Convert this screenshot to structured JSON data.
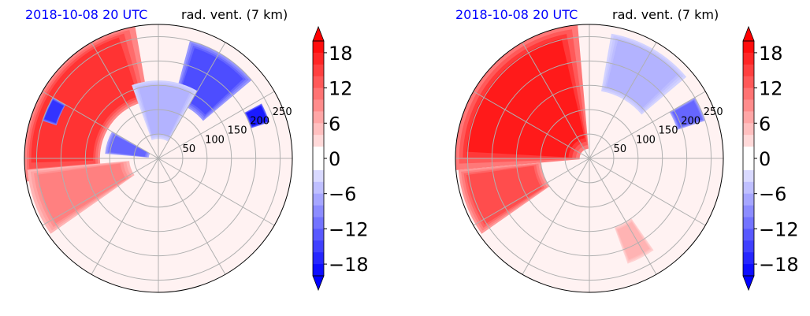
{
  "chart_data": [
    {
      "type": "heatmap",
      "subtype": "polar",
      "title_left": "2018-10-08 20 UTC",
      "title_right": "rad. vent. (7 km)",
      "radial_ticks": [
        "50",
        "100",
        "150",
        "200",
        "250"
      ],
      "radial_values": [
        50,
        100,
        150,
        200,
        250
      ],
      "r_max": 275,
      "grid": true,
      "angular_spokes_deg": [
        0,
        30,
        60,
        90,
        120,
        150,
        180,
        210,
        240,
        270,
        300,
        330
      ],
      "colorbar": {
        "ticks": [
          "18",
          "12",
          "6",
          "0",
          "−6",
          "−12",
          "−18"
        ],
        "tick_values": [
          18,
          12,
          6,
          0,
          -6,
          -12,
          -18
        ],
        "vmin": -20,
        "vmax": 20,
        "step": 2,
        "colors": {
          "positive": "#ff0000",
          "zero": "#ffffff",
          "negative": "#0000ff"
        }
      },
      "regions": [
        {
          "sign": "positive",
          "level": 16,
          "a0": 100,
          "a1": 190,
          "r0": 120,
          "r1": 275
        },
        {
          "sign": "positive",
          "level": 10,
          "a0": 185,
          "a1": 215,
          "r0": 60,
          "r1": 270
        },
        {
          "sign": "negative",
          "level": 14,
          "a0": 40,
          "a1": 75,
          "r0": 120,
          "r1": 250
        },
        {
          "sign": "negative",
          "level": 12,
          "a0": 150,
          "a1": 175,
          "r0": 20,
          "r1": 110
        },
        {
          "sign": "negative",
          "level": 6,
          "a0": 60,
          "a1": 110,
          "r0": 40,
          "r1": 160
        },
        {
          "sign": "negative",
          "level": 18,
          "a0": 18,
          "a1": 28,
          "r0": 200,
          "r1": 240
        },
        {
          "sign": "negative",
          "level": 16,
          "a0": 150,
          "a1": 162,
          "r0": 220,
          "r1": 250
        }
      ]
    },
    {
      "type": "heatmap",
      "subtype": "polar",
      "title_left": "2018-10-08 20 UTC",
      "title_right": "rad. vent. (7 km)",
      "radial_ticks": [
        "50",
        "100",
        "150",
        "200",
        "250"
      ],
      "radial_values": [
        50,
        100,
        150,
        200,
        250
      ],
      "r_max": 275,
      "grid": true,
      "angular_spokes_deg": [
        0,
        30,
        60,
        90,
        120,
        150,
        180,
        210,
        240,
        270,
        300,
        330
      ],
      "colorbar": {
        "ticks": [
          "18",
          "12",
          "6",
          "0",
          "−6",
          "−12",
          "−18"
        ],
        "tick_values": [
          18,
          12,
          6,
          0,
          -6,
          -12,
          -18
        ],
        "vmin": -20,
        "vmax": 20,
        "step": 2,
        "colors": {
          "positive": "#ff0000",
          "zero": "#ffffff",
          "negative": "#0000ff"
        }
      },
      "regions": [
        {
          "sign": "positive",
          "level": 18,
          "a0": 95,
          "a1": 185,
          "r0": 20,
          "r1": 275
        },
        {
          "sign": "positive",
          "level": 14,
          "a0": 185,
          "a1": 215,
          "r0": 100,
          "r1": 270
        },
        {
          "sign": "negative",
          "level": 6,
          "a0": 40,
          "a1": 80,
          "r0": 140,
          "r1": 260
        },
        {
          "sign": "negative",
          "level": 12,
          "a0": 18,
          "a1": 30,
          "r0": 190,
          "r1": 250
        },
        {
          "sign": "positive",
          "level": 6,
          "a0": 290,
          "a1": 305,
          "r0": 150,
          "r1": 230
        }
      ]
    }
  ]
}
